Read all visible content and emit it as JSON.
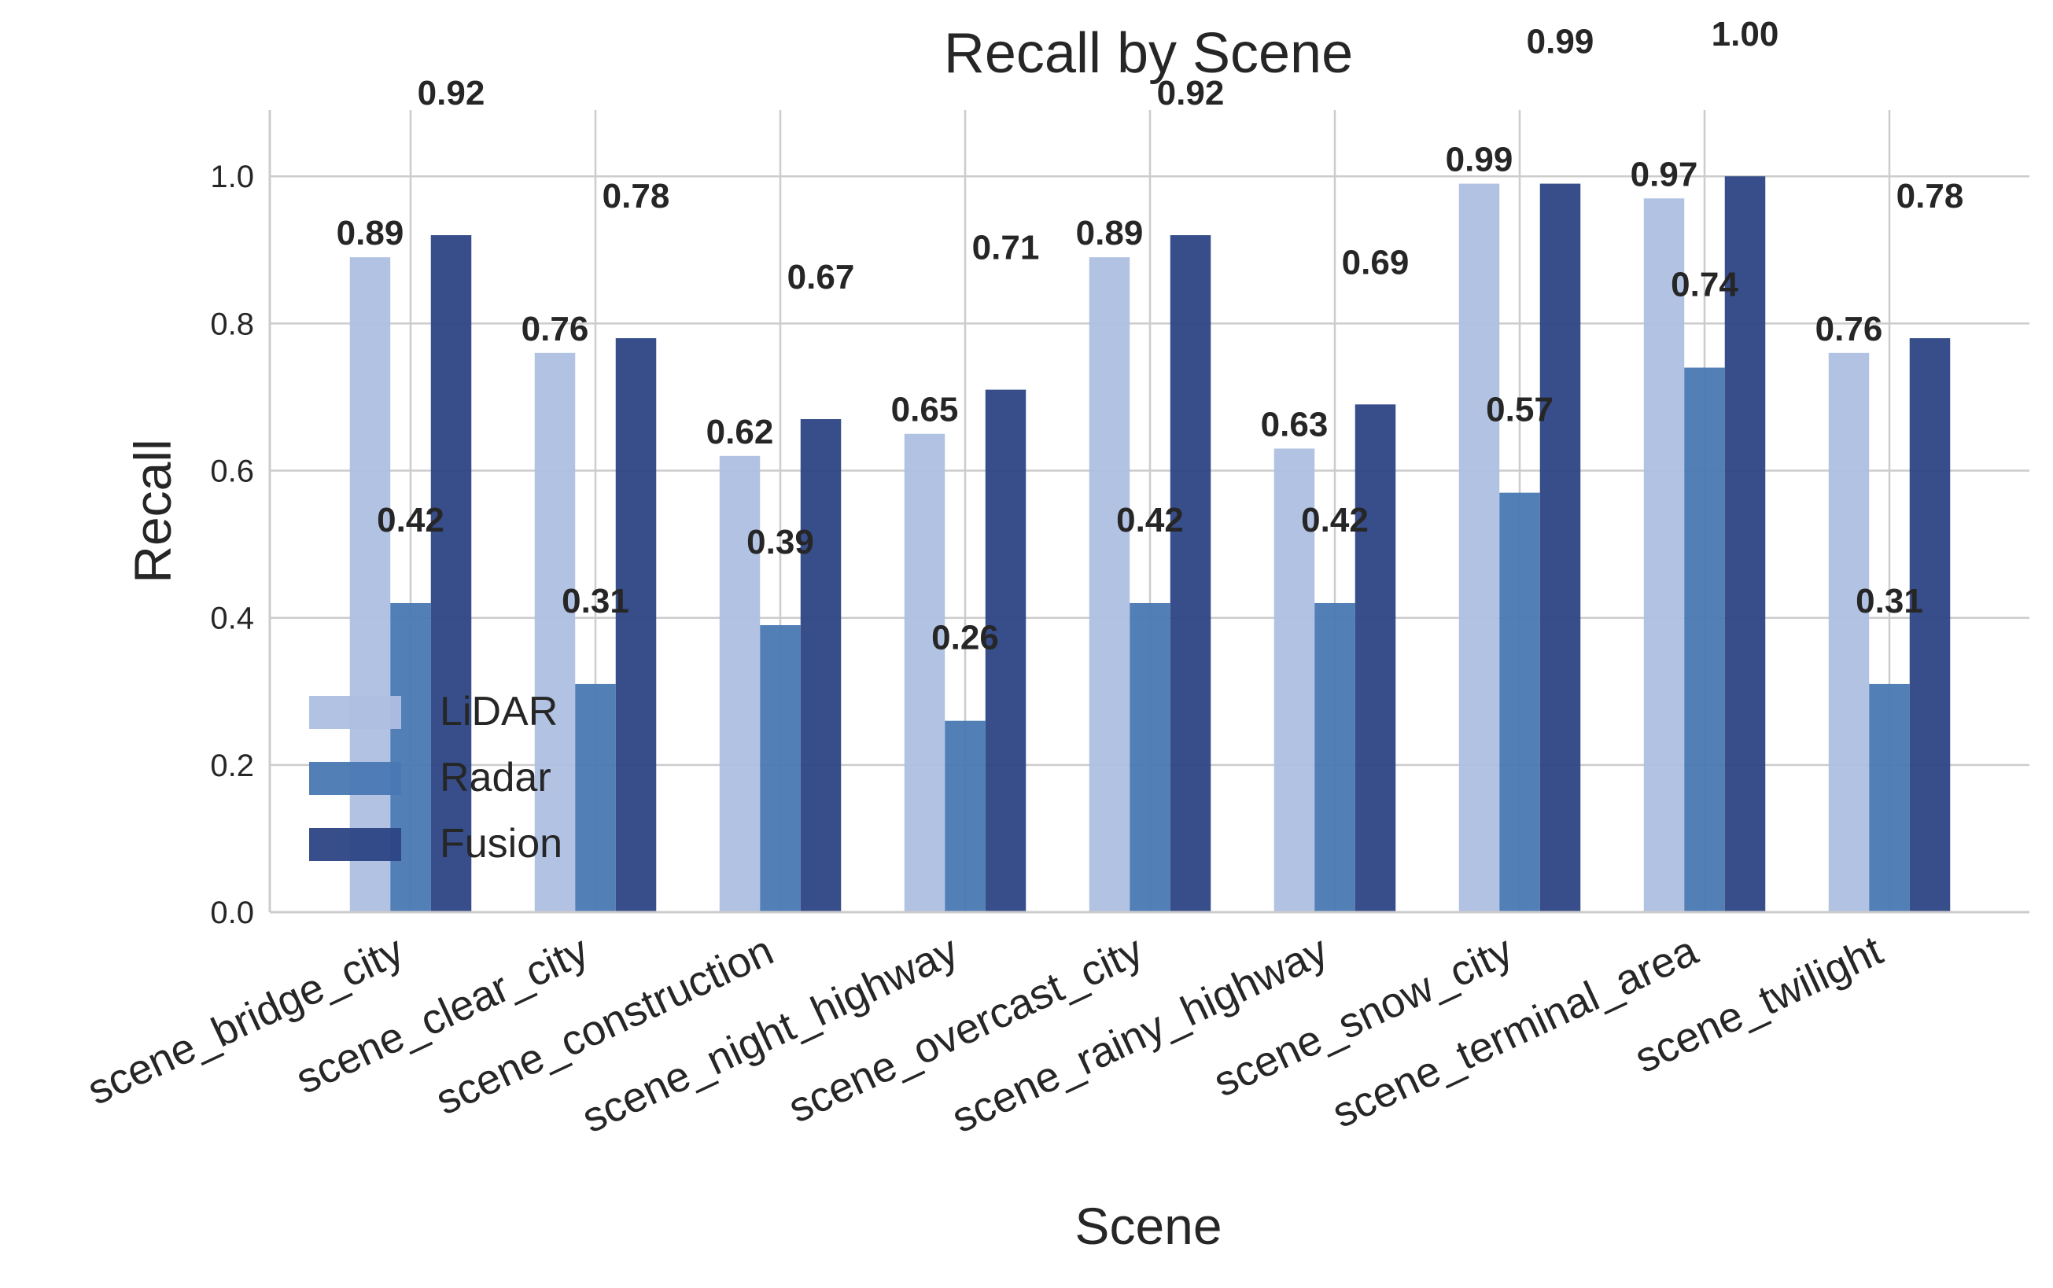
{
  "chart_data": {
    "type": "bar",
    "title": "Recall by Scene",
    "xlabel": "Scene",
    "ylabel": "Recall",
    "categories": [
      "scene_bridge_city",
      "scene_clear_city",
      "scene_construction",
      "scene_night_highway",
      "scene_overcast_city",
      "scene_rainy_highway",
      "scene_snow_city",
      "scene_terminal_area",
      "scene_twilight"
    ],
    "series": [
      {
        "name": "LiDAR",
        "color": "#aebfe1",
        "values": [
          0.89,
          0.76,
          0.62,
          0.65,
          0.89,
          0.63,
          0.99,
          0.97,
          0.76
        ]
      },
      {
        "name": "Radar",
        "color": "#4a78b3",
        "values": [
          0.42,
          0.31,
          0.39,
          0.26,
          0.42,
          0.42,
          0.57,
          0.74,
          0.31
        ]
      },
      {
        "name": "Fusion",
        "color": "#2c4584",
        "values": [
          0.92,
          0.78,
          0.67,
          0.71,
          0.92,
          0.69,
          0.99,
          1.0,
          0.78
        ]
      }
    ],
    "ylim": [
      0,
      1.09
    ],
    "yticks": [
      "0.0",
      "0.2",
      "0.4",
      "0.6",
      "0.8",
      "1.0"
    ],
    "grid": true,
    "legend_position": "lower-left"
  }
}
